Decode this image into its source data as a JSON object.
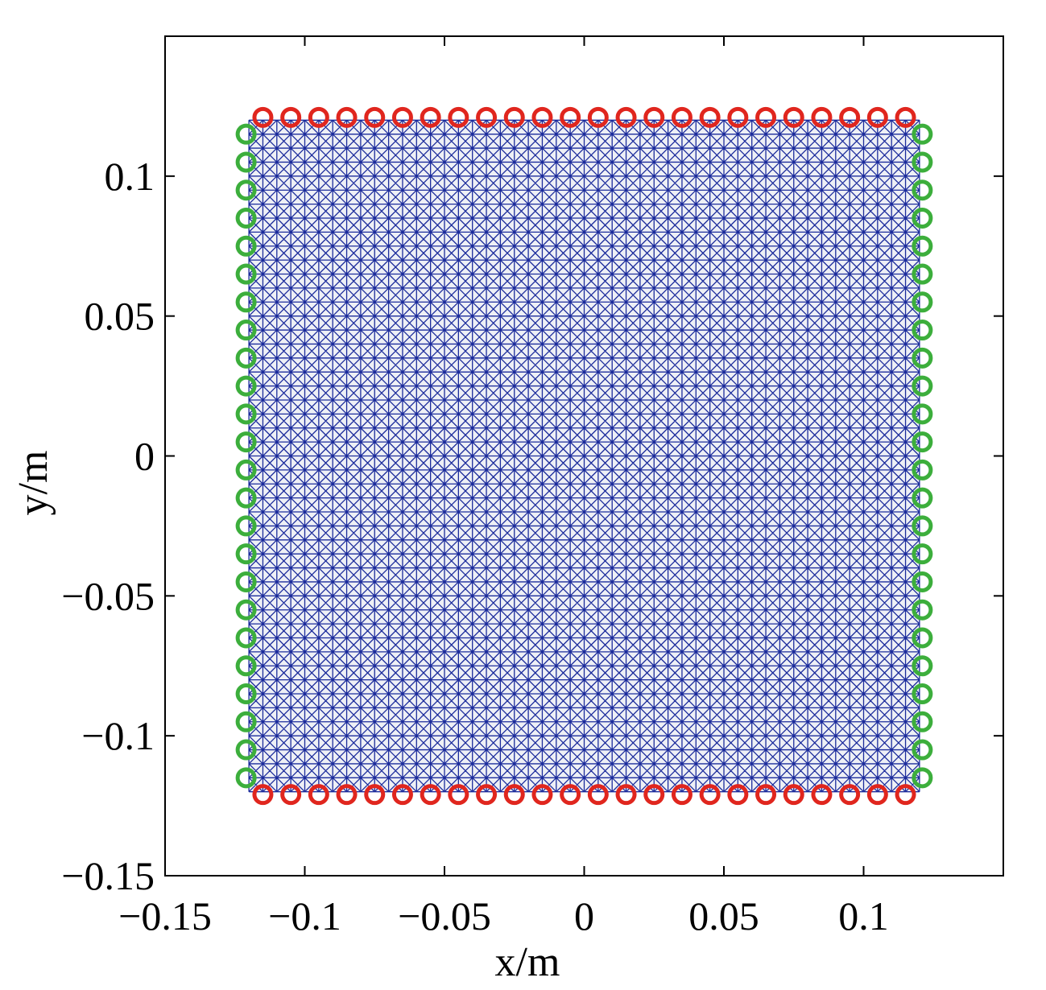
{
  "chart_data": {
    "type": "scatter",
    "title": "",
    "xlabel": "x/m",
    "ylabel": "y/m",
    "xlim": [
      -0.15,
      0.15
    ],
    "ylim": [
      -0.15,
      0.15
    ],
    "xticks": [
      -0.15,
      -0.1,
      -0.05,
      0,
      0.05,
      0.1
    ],
    "yticks": [
      -0.15,
      -0.1,
      -0.05,
      0,
      0.05,
      0.1
    ],
    "xtick_labels": [
      "−0.15",
      "−0.1",
      "−0.05",
      "0",
      "0.05",
      "0.1"
    ],
    "ytick_labels": [
      "−0.15",
      "−0.1",
      "−0.05",
      "0",
      "0.05",
      "0.1"
    ],
    "grid": false,
    "legend": "none",
    "mesh": {
      "xmin": -0.12,
      "xmax": 0.12,
      "ymin": -0.12,
      "ymax": 0.12,
      "divisions": 48,
      "pattern": "cross-diagonal",
      "color": "#1c2c9c"
    },
    "series": [
      {
        "marker": "open-circle",
        "color": "#e0261e",
        "x": [
          -0.115,
          -0.105,
          -0.095,
          -0.085,
          -0.075,
          -0.065,
          -0.055,
          -0.045,
          -0.035,
          -0.025,
          -0.015,
          -0.005,
          0.005,
          0.015,
          0.025,
          0.035,
          0.045,
          0.055,
          0.065,
          0.075,
          0.085,
          0.095,
          0.105,
          0.115,
          -0.115,
          -0.105,
          -0.095,
          -0.085,
          -0.075,
          -0.065,
          -0.055,
          -0.045,
          -0.035,
          -0.025,
          -0.015,
          -0.005,
          0.005,
          0.015,
          0.025,
          0.035,
          0.045,
          0.055,
          0.065,
          0.075,
          0.085,
          0.095,
          0.105,
          0.115
        ],
        "y": [
          0.121,
          0.121,
          0.121,
          0.121,
          0.121,
          0.121,
          0.121,
          0.121,
          0.121,
          0.121,
          0.121,
          0.121,
          0.121,
          0.121,
          0.121,
          0.121,
          0.121,
          0.121,
          0.121,
          0.121,
          0.121,
          0.121,
          0.121,
          0.121,
          -0.121,
          -0.121,
          -0.121,
          -0.121,
          -0.121,
          -0.121,
          -0.121,
          -0.121,
          -0.121,
          -0.121,
          -0.121,
          -0.121,
          -0.121,
          -0.121,
          -0.121,
          -0.121,
          -0.121,
          -0.121,
          -0.121,
          -0.121,
          -0.121,
          -0.121,
          -0.121,
          -0.121
        ]
      },
      {
        "marker": "open-circle",
        "color": "#3cae3c",
        "x": [
          -0.121,
          -0.121,
          -0.121,
          -0.121,
          -0.121,
          -0.121,
          -0.121,
          -0.121,
          -0.121,
          -0.121,
          -0.121,
          -0.121,
          -0.121,
          -0.121,
          -0.121,
          -0.121,
          -0.121,
          -0.121,
          -0.121,
          -0.121,
          -0.121,
          -0.121,
          -0.121,
          -0.121,
          0.121,
          0.121,
          0.121,
          0.121,
          0.121,
          0.121,
          0.121,
          0.121,
          0.121,
          0.121,
          0.121,
          0.121,
          0.121,
          0.121,
          0.121,
          0.121,
          0.121,
          0.121,
          0.121,
          0.121,
          0.121,
          0.121,
          0.121,
          0.121
        ],
        "y": [
          0.115,
          0.105,
          0.095,
          0.085,
          0.075,
          0.065,
          0.055,
          0.045,
          0.035,
          0.025,
          0.015,
          0.005,
          -0.005,
          -0.015,
          -0.025,
          -0.035,
          -0.045,
          -0.055,
          -0.065,
          -0.075,
          -0.085,
          -0.095,
          -0.105,
          -0.115,
          0.115,
          0.105,
          0.095,
          0.085,
          0.075,
          0.065,
          0.055,
          0.045,
          0.035,
          0.025,
          0.015,
          0.005,
          -0.005,
          -0.015,
          -0.025,
          -0.035,
          -0.045,
          -0.055,
          -0.065,
          -0.075,
          -0.085,
          -0.095,
          -0.105,
          -0.115
        ]
      }
    ]
  }
}
